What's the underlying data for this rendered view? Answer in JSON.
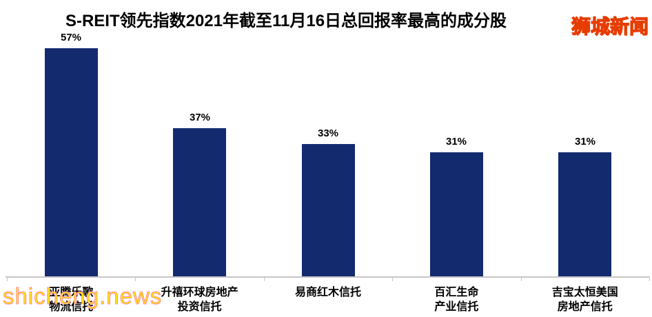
{
  "page": {
    "background": "#ffffff"
  },
  "header": {
    "logo_text": "狮城新闻",
    "logo_color": "#ffff00",
    "logo_outline_color": "#e63c00"
  },
  "watermark": {
    "text": "shicheng.news",
    "color": "#ffe800",
    "outline_color": "#ff8fa0"
  },
  "chart_data": {
    "type": "bar",
    "title": "S-REIT领先指数2021年截至11月16日总回报率最高的成分股",
    "categories": [
      [
        "亚腾乐歌",
        "物流信托"
      ],
      [
        "升禧环球房地产",
        "投资信托"
      ],
      [
        "易商红木信托"
      ],
      [
        "百汇生命",
        "产业信托"
      ],
      [
        "吉宝太恒美国",
        "房地产信托"
      ]
    ],
    "values": [
      57,
      37,
      33,
      31,
      31
    ],
    "value_labels": [
      "57%",
      "37%",
      "33%",
      "31%",
      "31%"
    ],
    "xlabel": "",
    "ylabel": "",
    "ylim": [
      0,
      60
    ],
    "grid": false,
    "legend": "none",
    "data_labels": true,
    "bar_color": "#132a6e",
    "axis_color": "#c6c6c6",
    "label_color": "#000000"
  }
}
